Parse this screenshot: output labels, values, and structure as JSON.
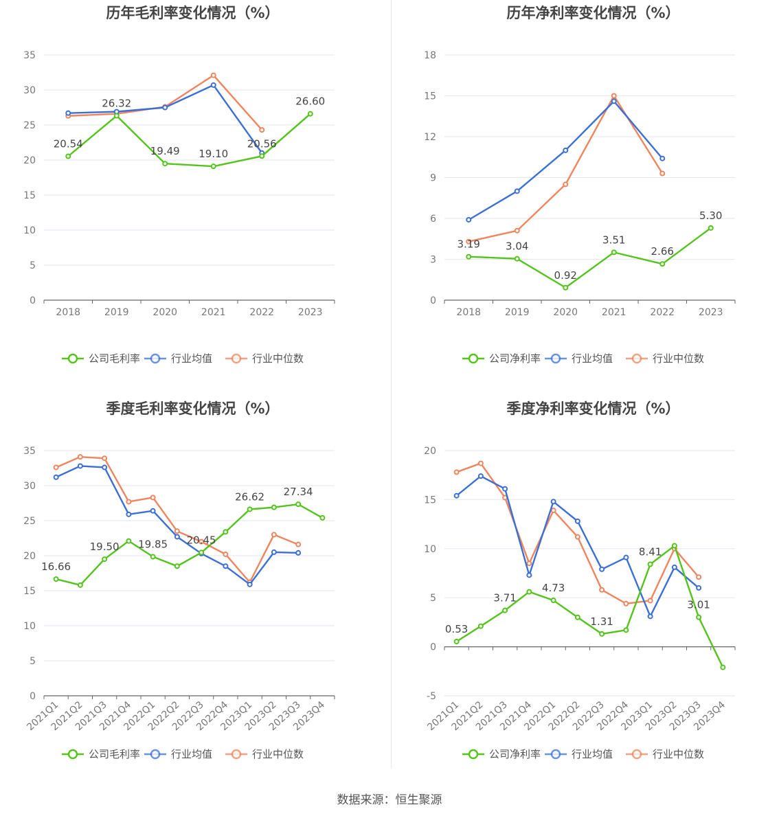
{
  "source_label": "数据来源：恒生聚源",
  "colors": {
    "company": "#52c41a",
    "avg": "#3b6fd8",
    "median": "#f0845c",
    "grid": "#e6e6ee",
    "axis": "#666666"
  },
  "chart_data": [
    {
      "id": "annual-gross",
      "type": "line",
      "title": "历年毛利率变化情况（%）",
      "categories": [
        "2018",
        "2019",
        "2020",
        "2021",
        "2022",
        "2023"
      ],
      "ylim": [
        0,
        35
      ],
      "yticks": [
        0,
        5,
        10,
        15,
        20,
        25,
        30,
        35
      ],
      "rotate_x": false,
      "series": [
        {
          "name": "公司毛利率",
          "key": "company",
          "values": [
            20.54,
            26.32,
            19.49,
            19.1,
            20.56,
            26.6
          ],
          "labels": [
            "20.54",
            "26.32",
            "19.49",
            "19.10",
            "20.56",
            "26.60"
          ]
        },
        {
          "name": "行业均值",
          "key": "avg",
          "values": [
            26.7,
            26.9,
            27.5,
            30.7,
            21.0,
            null
          ]
        },
        {
          "name": "行业中位数",
          "key": "median",
          "values": [
            26.3,
            26.6,
            27.6,
            32.1,
            24.3,
            null
          ]
        }
      ]
    },
    {
      "id": "annual-net",
      "type": "line",
      "title": "历年净利率变化情况（%）",
      "categories": [
        "2018",
        "2019",
        "2020",
        "2021",
        "2022",
        "2023"
      ],
      "ylim": [
        0,
        18
      ],
      "yticks": [
        0,
        3,
        6,
        9,
        12,
        15,
        18
      ],
      "rotate_x": false,
      "series": [
        {
          "name": "公司净利率",
          "key": "company",
          "values": [
            3.19,
            3.04,
            0.92,
            3.51,
            2.66,
            5.3
          ],
          "labels": [
            "3.19",
            "3.04",
            "0.92",
            "3.51",
            "2.66",
            "5.30"
          ]
        },
        {
          "name": "行业均值",
          "key": "avg",
          "values": [
            5.9,
            8.0,
            11.0,
            14.6,
            10.4,
            null
          ]
        },
        {
          "name": "行业中位数",
          "key": "median",
          "values": [
            4.3,
            5.1,
            8.5,
            15.0,
            9.3,
            null
          ]
        }
      ]
    },
    {
      "id": "quarter-gross",
      "type": "line",
      "title": "季度毛利率变化情况（%）",
      "categories": [
        "2021Q1",
        "2021Q2",
        "2021Q3",
        "2021Q4",
        "2022Q1",
        "2022Q2",
        "2022Q3",
        "2022Q4",
        "2023Q1",
        "2023Q2",
        "2023Q3",
        "2023Q4"
      ],
      "ylim": [
        0,
        35
      ],
      "yticks": [
        0,
        5,
        10,
        15,
        20,
        25,
        30,
        35
      ],
      "rotate_x": true,
      "series": [
        {
          "name": "公司毛利率",
          "key": "company",
          "values": [
            16.66,
            15.8,
            19.5,
            22.1,
            19.85,
            18.5,
            20.45,
            23.4,
            26.62,
            26.9,
            27.34,
            25.4
          ],
          "labels": [
            "16.66",
            "",
            "19.50",
            "",
            "19.85",
            "",
            "20.45",
            "",
            "26.62",
            "",
            "27.34",
            ""
          ]
        },
        {
          "name": "行业均值",
          "key": "avg",
          "values": [
            31.2,
            32.8,
            32.6,
            25.9,
            26.4,
            22.7,
            20.3,
            18.5,
            15.9,
            20.5,
            20.4,
            null
          ]
        },
        {
          "name": "行业中位数",
          "key": "median",
          "values": [
            32.6,
            34.1,
            33.9,
            27.7,
            28.3,
            23.5,
            22.0,
            20.2,
            16.2,
            23.0,
            21.6,
            null
          ]
        }
      ]
    },
    {
      "id": "quarter-net",
      "type": "line",
      "title": "季度净利率变化情况（%）",
      "categories": [
        "2021Q1",
        "2021Q2",
        "2021Q3",
        "2021Q4",
        "2022Q1",
        "2022Q2",
        "2022Q3",
        "2022Q4",
        "2023Q1",
        "2023Q2",
        "2023Q3",
        "2023Q4"
      ],
      "ylim": [
        -5,
        20
      ],
      "yticks": [
        -5,
        0,
        5,
        10,
        15,
        20
      ],
      "rotate_x": true,
      "series": [
        {
          "name": "公司净利率",
          "key": "company",
          "values": [
            0.53,
            2.1,
            3.71,
            5.6,
            4.73,
            3.0,
            1.31,
            1.7,
            8.41,
            10.3,
            3.01,
            -2.1
          ],
          "labels": [
            "0.53",
            "",
            "3.71",
            "",
            "4.73",
            "",
            "1.31",
            "",
            "8.41",
            "",
            "3.01",
            ""
          ]
        },
        {
          "name": "行业均值",
          "key": "avg",
          "values": [
            15.4,
            17.4,
            16.1,
            7.3,
            14.8,
            12.8,
            7.9,
            9.1,
            3.1,
            8.1,
            6.0,
            null
          ]
        },
        {
          "name": "行业中位数",
          "key": "median",
          "values": [
            17.8,
            18.7,
            15.2,
            8.5,
            13.9,
            11.2,
            5.8,
            4.4,
            4.7,
            10.0,
            7.1,
            null
          ]
        }
      ]
    }
  ]
}
